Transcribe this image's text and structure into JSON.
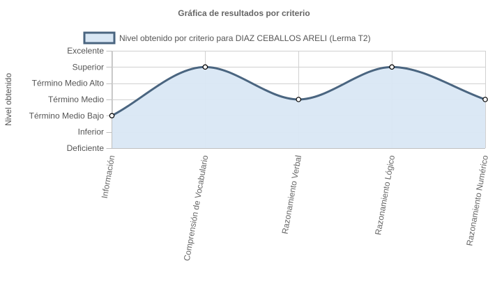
{
  "chart_data": {
    "type": "line",
    "title": "Gráfica de resultados por criterio",
    "ylabel": "Nivel obtenido",
    "xlabel": "",
    "y_levels": [
      "Deficiente",
      "Inferior",
      "Término Medio Bajo",
      "Término Medio",
      "Término Medio Alto",
      "Superior",
      "Excelente"
    ],
    "categories": [
      "Información",
      "Comprensión de Vocabulario",
      "Razonamiento Verbal",
      "Razonamiento Lógico",
      "Razonamiento Numérico"
    ],
    "series": [
      {
        "name": "Nivel obtenido por criterio para DIAZ CEBALLOS ARELI (Lerma T2)",
        "values": [
          2,
          5,
          3,
          5,
          3
        ],
        "value_labels": [
          "Término Medio Bajo",
          "Superior",
          "Término Medio",
          "Superior",
          "Término Medio"
        ]
      }
    ],
    "ylim": [
      0,
      6
    ],
    "fill": true,
    "smooth": true,
    "grid": true,
    "legend_position": "top",
    "colors": {
      "line": "#4a6580",
      "fill": "#d9e7f4",
      "grid": "#d0d0d0",
      "point_fill": "#ffffff",
      "point_stroke": "#000000"
    }
  }
}
